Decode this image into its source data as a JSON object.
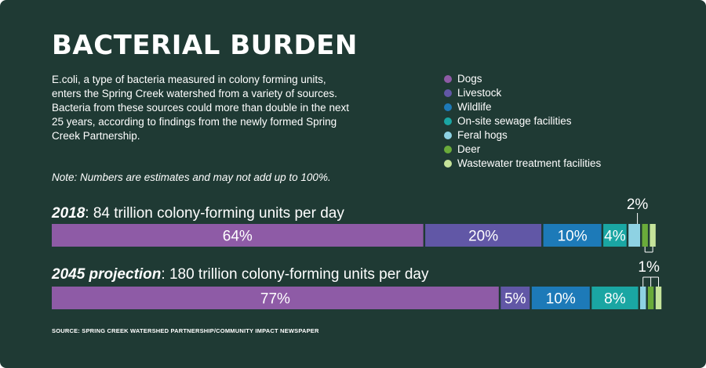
{
  "title": "BACTERIAL BURDEN",
  "intro": "E.coli, a type of bacteria measured in colony forming units, enters the Spring Creek watershed from a variety of sources. Bacteria from these sources could more than double in the next 25 years, according to findings from the newly formed Spring Creek Partnership.",
  "note": "Note: Numbers are estimates and may not add up to 100%.",
  "legend": [
    {
      "label": "Dogs",
      "color": "#8e5ba6"
    },
    {
      "label": "Livestock",
      "color": "#6157a6"
    },
    {
      "label": "Wildlife",
      "color": "#1d7ab8"
    },
    {
      "label": "On-site sewage facilities",
      "color": "#1aa6a3"
    },
    {
      "label": "Feral hogs",
      "color": "#8ed2e3"
    },
    {
      "label": "Deer",
      "color": "#6aab3a"
    },
    {
      "label": "Wastewater treatment facilities",
      "color": "#c5e39a"
    }
  ],
  "rows": [
    {
      "label_bold": "2018",
      "label_rest": ": 84 trillion colony-forming units per day"
    },
    {
      "label_bold": "2045 projection",
      "label_rest": ": 180 trillion colony-forming units per day"
    }
  ],
  "chart_data": {
    "type": "bar",
    "orientation": "horizontal",
    "stacked": true,
    "categories": [
      "2018",
      "2045 projection"
    ],
    "series": [
      {
        "name": "Dogs",
        "values": [
          64,
          77
        ],
        "labels": [
          "64%",
          "77%"
        ]
      },
      {
        "name": "Livestock",
        "values": [
          20,
          5
        ],
        "labels": [
          "20%",
          "5%"
        ]
      },
      {
        "name": "Wildlife",
        "values": [
          10,
          10
        ],
        "labels": [
          "10%",
          "10%"
        ]
      },
      {
        "name": "On-site sewage facilities",
        "values": [
          4,
          8
        ],
        "labels": [
          "4%",
          "8%"
        ]
      },
      {
        "name": "Feral hogs",
        "values": [
          2,
          1
        ],
        "labels": [
          "",
          ""
        ]
      },
      {
        "name": "Deer",
        "values": [
          1,
          1
        ],
        "labels": [
          "",
          ""
        ]
      },
      {
        "name": "Wastewater treatment facilities",
        "values": [
          1,
          1
        ],
        "labels": [
          "",
          ""
        ]
      }
    ],
    "callouts": [
      "2%",
      "1%"
    ]
  },
  "source": "SOURCE: SPRING CREEK WATERSHED PARTNERSHIP/COMMUNITY IMPACT NEWSPAPER"
}
